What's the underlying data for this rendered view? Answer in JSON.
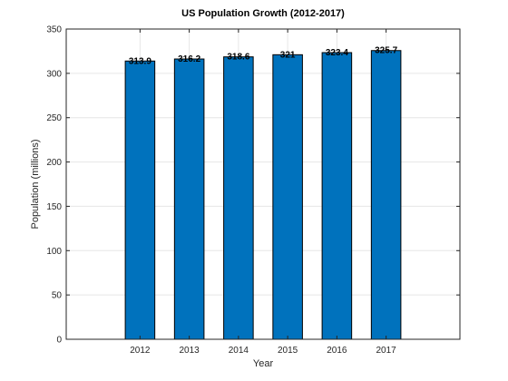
{
  "chart_data": {
    "type": "bar",
    "title": "US Population Growth (2012-2017)",
    "xlabel": "Year",
    "ylabel": "Population (millions)",
    "categories": [
      "2012",
      "2013",
      "2014",
      "2015",
      "2016",
      "2017"
    ],
    "values": [
      313.9,
      316.2,
      318.6,
      321,
      323.4,
      325.7
    ],
    "data_labels": [
      "313.9",
      "316.2",
      "318.6",
      "321",
      "323.4",
      "325.7"
    ],
    "ylim": [
      0,
      350
    ],
    "yticks": [
      0,
      50,
      100,
      150,
      200,
      250,
      300,
      350
    ],
    "ytick_labels": [
      "0",
      "50",
      "100",
      "150",
      "200",
      "250",
      "300",
      "350"
    ],
    "grid": true,
    "bar_color": "#0072BD"
  }
}
